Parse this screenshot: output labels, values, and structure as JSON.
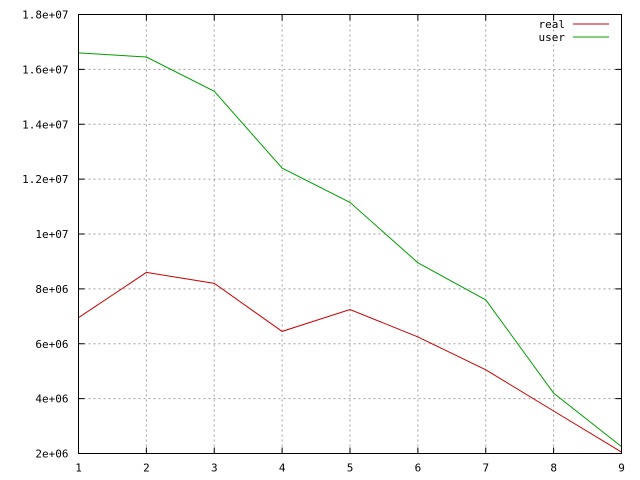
{
  "chart_data": {
    "type": "line",
    "title": "",
    "xlabel": "",
    "ylabel": "",
    "x": [
      1,
      2,
      3,
      4,
      5,
      6,
      7,
      8,
      9
    ],
    "xlim": [
      1,
      9
    ],
    "ylim": [
      2000000,
      18000000
    ],
    "x_ticks": [
      1,
      2,
      3,
      4,
      5,
      6,
      7,
      8,
      9
    ],
    "x_tick_labels": [
      "1",
      "2",
      "3",
      "4",
      "5",
      "6",
      "7",
      "8",
      "9"
    ],
    "y_ticks": [
      2000000,
      4000000,
      6000000,
      8000000,
      10000000,
      12000000,
      14000000,
      16000000,
      18000000
    ],
    "y_tick_labels": [
      "2e+06",
      "4e+06",
      "6e+06",
      "8e+06",
      "1e+07",
      "1.2e+07",
      "1.4e+07",
      "1.6e+07",
      "1.8e+07"
    ],
    "grid": true,
    "legend_position": "top-right",
    "series": [
      {
        "name": "real",
        "color": "#cc0000",
        "values": [
          6950000,
          8600000,
          8200000,
          6450000,
          7250000,
          6250000,
          5050000,
          3550000,
          2050000
        ]
      },
      {
        "name": "user",
        "color": "#00a000",
        "values": [
          16600000,
          16450000,
          15200000,
          12400000,
          11150000,
          8950000,
          7600000,
          4200000,
          2250000
        ]
      }
    ]
  }
}
